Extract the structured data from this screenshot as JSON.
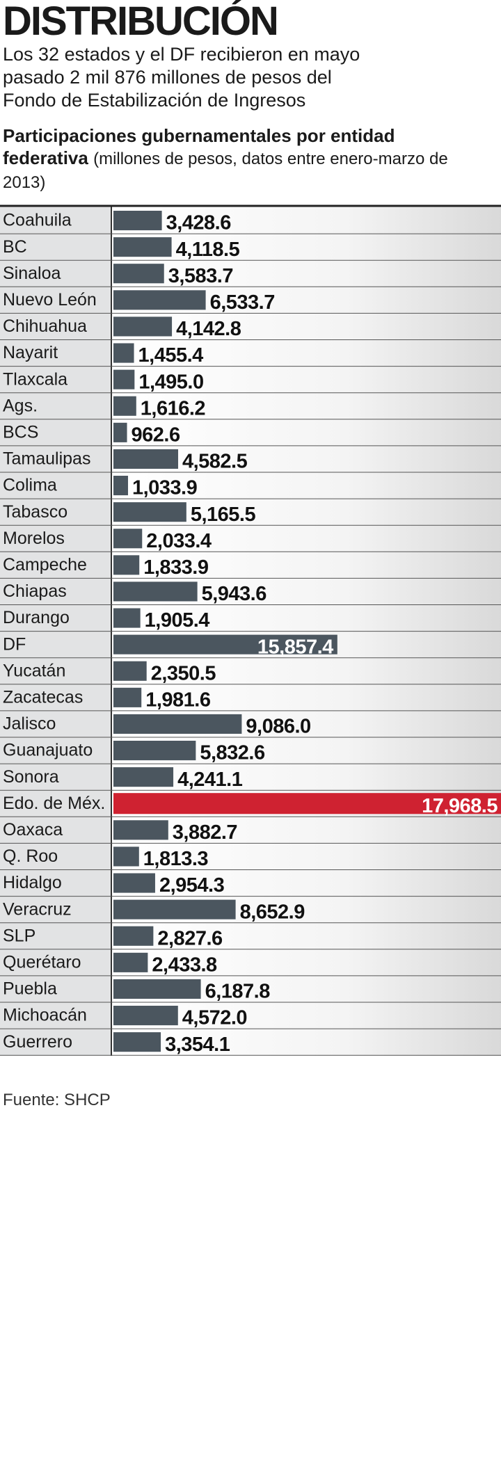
{
  "header": {
    "title": "DISTRIBUCIÓN",
    "lines": [
      "Los 32 estados y el DF recibieron en mayo",
      "pasado 2 mil 876 millones de pesos del",
      "Fondo de Estabilización de Ingresos"
    ]
  },
  "chart_data": {
    "type": "bar",
    "orientation": "horizontal",
    "title": "Participaciones gubernamentales por entidad federativa",
    "subtitle": "(millones de pesos, datos entre enero-marzo de 2013)",
    "categories": [
      "Coahuila",
      "BC",
      "Sinaloa",
      "Nuevo León",
      "Chihuahua",
      "Nayarit",
      "Tlaxcala",
      "Ags.",
      "BCS",
      "Tamaulipas",
      "Colima",
      "Tabasco",
      "Morelos",
      "Campeche",
      "Chiapas",
      "Durango",
      "DF",
      "Yucatán",
      "Zacatecas",
      "Jalisco",
      "Guanajuato",
      "Sonora",
      "Edo. de Méx.",
      "Oaxaca",
      "Q. Roo",
      "Hidalgo",
      "Veracruz",
      "SLP",
      "Querétaro",
      "Puebla",
      "Michoacán",
      "Guerrero"
    ],
    "values": [
      3428.6,
      4118.5,
      3583.7,
      6533.7,
      4142.8,
      1455.4,
      1495.0,
      1616.2,
      962.6,
      4582.5,
      1033.9,
      5165.5,
      2033.4,
      1833.9,
      5943.6,
      1905.4,
      15857.4,
      2350.5,
      1981.6,
      9086.0,
      5832.6,
      4241.1,
      17968.5,
      3882.7,
      1813.3,
      2954.3,
      8652.9,
      2827.6,
      2433.8,
      6187.8,
      4572.0,
      3354.1
    ],
    "value_labels": [
      "3,428.6",
      "4,118.5",
      "3,583.7",
      "6,533.7",
      "4,142.8",
      "1,455.4",
      "1,495.0",
      "1,616.2",
      "962.6",
      "4,582.5",
      "1,033.9",
      "5,165.5",
      "2,033.4",
      "1,833.9",
      "5,943.6",
      "1,905.4",
      "15,857.4",
      "2,350.5",
      "1,981.6",
      "9,086.0",
      "5,832.6",
      "4,241.1",
      "17,968.5",
      "3,882.7",
      "1,813.3",
      "2,954.3",
      "8,652.9",
      "2,827.6",
      "2,433.8",
      "6,187.8",
      "4,572.0",
      "3,354.1"
    ],
    "color": "#4b565f",
    "xlim": [
      0,
      27200
    ],
    "highlight": {
      "index": 22,
      "color": "#cf2231"
    },
    "source": "Fuente: SHCP"
  }
}
